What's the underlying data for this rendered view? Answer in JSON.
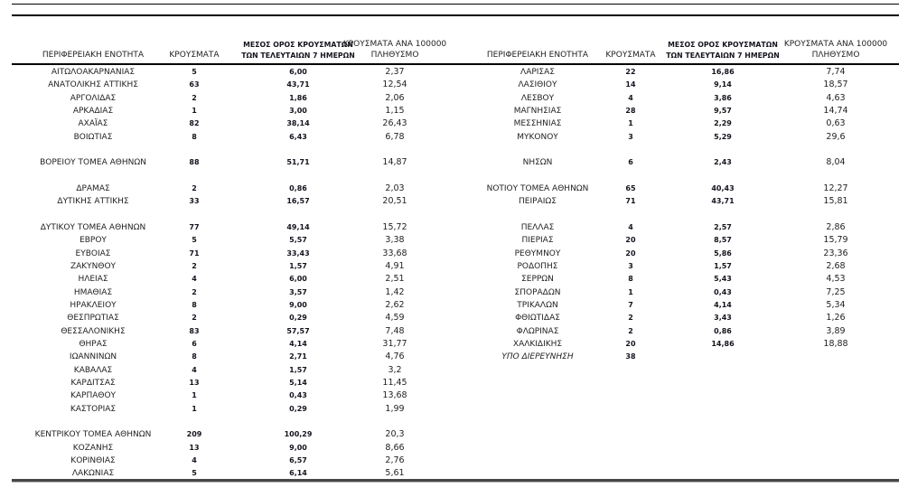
{
  "header": {
    "region": "ΠΕΡΙΦΕΡΕΙΑΚΗ ΕΝΟΤΗΤΑ",
    "cases": "ΚΡΟΥΣΜΑΤΑ",
    "avg7_line1": "ΜΕΣΟΣ ΟΡΟΣ ΚΡΟΥΣΜΑΤΩΝ",
    "avg7_line2": "ΤΩΝ ΤΕΛΕΥΤΑΙΩΝ 7 ΗΜΕΡΩΝ",
    "per100k_line1": "ΚΡΟΥΣΜΑΤΑ ΑΝΑ 100000",
    "per100k_line2": "ΠΛΗΘΥΣΜΟ"
  },
  "tables": [
    {
      "side": "left",
      "rows": [
        {
          "region": "ΑΙΤΩΛΟΑΚΑΡΝΑΝΙΑΣ",
          "cases": "5",
          "avg7": "6,00",
          "per100k": "2,37"
        },
        {
          "region": "ΑΝΑΤΟΛΙΚΗΣ ΑΤΤΙΚΗΣ",
          "cases": "63",
          "avg7": "43,71",
          "per100k": "12,54"
        },
        {
          "region": "ΑΡΓΟΛΙΔΑΣ",
          "cases": "2",
          "avg7": "1,86",
          "per100k": "2,06"
        },
        {
          "region": "ΑΡΚΑΔΙΑΣ",
          "cases": "1",
          "avg7": "3,00",
          "per100k": "1,15"
        },
        {
          "region": "ΑΧΑΪΑΣ",
          "cases": "82",
          "avg7": "38,14",
          "per100k": "26,43"
        },
        {
          "region": "ΒΟΙΩΤΙΑΣ",
          "cases": "8",
          "avg7": "6,43",
          "per100k": "6,78"
        },
        {
          "region": "",
          "cases": "",
          "avg7": "",
          "per100k": ""
        },
        {
          "region": "ΒΟΡΕΙΟΥ ΤΟΜΕΑ ΑΘΗΝΩΝ",
          "cases": "88",
          "avg7": "51,71",
          "per100k": "14,87"
        },
        {
          "region": "",
          "cases": "",
          "avg7": "",
          "per100k": ""
        },
        {
          "region": "ΔΡΑΜΑΣ",
          "cases": "2",
          "avg7": "0,86",
          "per100k": "2,03"
        },
        {
          "region": "ΔΥΤΙΚΗΣ ΑΤΤΙΚΗΣ",
          "cases": "33",
          "avg7": "16,57",
          "per100k": "20,51"
        },
        {
          "region": "",
          "cases": "",
          "avg7": "",
          "per100k": ""
        },
        {
          "region": "ΔΥΤΙΚΟΥ ΤΟΜΕΑ ΑΘΗΝΩΝ",
          "cases": "77",
          "avg7": "49,14",
          "per100k": "15,72"
        },
        {
          "region": "ΕΒΡΟΥ",
          "cases": "5",
          "avg7": "5,57",
          "per100k": "3,38"
        },
        {
          "region": "ΕΥΒΟΙΑΣ",
          "cases": "71",
          "avg7": "33,43",
          "per100k": "33,68"
        },
        {
          "region": "ΖΑΚΥΝΘΟΥ",
          "cases": "2",
          "avg7": "1,57",
          "per100k": "4,91"
        },
        {
          "region": "ΗΛΕΙΑΣ",
          "cases": "4",
          "avg7": "6,00",
          "per100k": "2,51"
        },
        {
          "region": "ΗΜΑΘΙΑΣ",
          "cases": "2",
          "avg7": "3,57",
          "per100k": "1,42"
        },
        {
          "region": "ΗΡΑΚΛΕΙΟΥ",
          "cases": "8",
          "avg7": "9,00",
          "per100k": "2,62"
        },
        {
          "region": "ΘΕΣΠΡΩΤΙΑΣ",
          "cases": "2",
          "avg7": "0,29",
          "per100k": "4,59"
        },
        {
          "region": "ΘΕΣΣΑΛΟΝΙΚΗΣ",
          "cases": "83",
          "avg7": "57,57",
          "per100k": "7,48"
        },
        {
          "region": "ΘΗΡΑΣ",
          "cases": "6",
          "avg7": "4,14",
          "per100k": "31,77"
        },
        {
          "region": "ΙΩΑΝΝΙΝΩΝ",
          "cases": "8",
          "avg7": "2,71",
          "per100k": "4,76"
        },
        {
          "region": "ΚΑΒΑΛΑΣ",
          "cases": "4",
          "avg7": "1,57",
          "per100k": "3,2"
        },
        {
          "region": "ΚΑΡΔΙΤΣΑΣ",
          "cases": "13",
          "avg7": "5,14",
          "per100k": "11,45"
        },
        {
          "region": "ΚΑΡΠΑΘΟΥ",
          "cases": "1",
          "avg7": "0,43",
          "per100k": "13,68"
        },
        {
          "region": "ΚΑΣΤΟΡΙΑΣ",
          "cases": "1",
          "avg7": "0,29",
          "per100k": "1,99"
        },
        {
          "region": "",
          "cases": "",
          "avg7": "",
          "per100k": ""
        },
        {
          "region": "ΚΕΝΤΡΙΚΟΥ ΤΟΜΕΑ ΑΘΗΝΩΝ",
          "cases": "209",
          "avg7": "100,29",
          "per100k": "20,3"
        },
        {
          "region": "ΚΟΖΑΝΗΣ",
          "cases": "13",
          "avg7": "9,00",
          "per100k": "8,66"
        },
        {
          "region": "ΚΟΡΙΝΘΙΑΣ",
          "cases": "4",
          "avg7": "6,57",
          "per100k": "2,76"
        },
        {
          "region": "ΛΑΚΩΝΙΑΣ",
          "cases": "5",
          "avg7": "6,14",
          "per100k": "5,61"
        }
      ]
    },
    {
      "side": "right",
      "rows": [
        {
          "region": "ΛΑΡΙΣΑΣ",
          "cases": "22",
          "avg7": "16,86",
          "per100k": "7,74"
        },
        {
          "region": "ΛΑΣΙΘΙΟΥ",
          "cases": "14",
          "avg7": "9,14",
          "per100k": "18,57"
        },
        {
          "region": "ΛΕΣΒΟΥ",
          "cases": "4",
          "avg7": "3,86",
          "per100k": "4,63"
        },
        {
          "region": "ΜΑΓΝΗΣΙΑΣ",
          "cases": "28",
          "avg7": "9,57",
          "per100k": "14,74"
        },
        {
          "region": "ΜΕΣΣΗΝΙΑΣ",
          "cases": "1",
          "avg7": "2,29",
          "per100k": "0,63"
        },
        {
          "region": "ΜΥΚΟΝΟΥ",
          "cases": "3",
          "avg7": "5,29",
          "per100k": "29,6"
        },
        {
          "region": "",
          "cases": "",
          "avg7": "",
          "per100k": ""
        },
        {
          "region": "ΝΗΣΩΝ",
          "cases": "6",
          "avg7": "2,43",
          "per100k": "8,04"
        },
        {
          "region": "",
          "cases": "",
          "avg7": "",
          "per100k": ""
        },
        {
          "region": "ΝΟΤΙΟΥ ΤΟΜΕΑ ΑΘΗΝΩΝ",
          "cases": "65",
          "avg7": "40,43",
          "per100k": "12,27"
        },
        {
          "region": "ΠΕΙΡΑΙΩΣ",
          "cases": "71",
          "avg7": "43,71",
          "per100k": "15,81"
        },
        {
          "region": "",
          "cases": "",
          "avg7": "",
          "per100k": ""
        },
        {
          "region": "ΠΕΛΛΑΣ",
          "cases": "4",
          "avg7": "2,57",
          "per100k": "2,86"
        },
        {
          "region": "ΠΙΕΡΙΑΣ",
          "cases": "20",
          "avg7": "8,57",
          "per100k": "15,79"
        },
        {
          "region": "ΡΕΘΥΜΝΟΥ",
          "cases": "20",
          "avg7": "5,86",
          "per100k": "23,36"
        },
        {
          "region": "ΡΟΔΟΠΗΣ",
          "cases": "3",
          "avg7": "1,57",
          "per100k": "2,68"
        },
        {
          "region": "ΣΕΡΡΩΝ",
          "cases": "8",
          "avg7": "5,43",
          "per100k": "4,53"
        },
        {
          "region": "ΣΠΟΡΑΔΩΝ",
          "cases": "1",
          "avg7": "0,43",
          "per100k": "7,25"
        },
        {
          "region": "ΤΡΙΚΑΛΩΝ",
          "cases": "7",
          "avg7": "4,14",
          "per100k": "5,34"
        },
        {
          "region": "ΦΘΙΩΤΙΔΑΣ",
          "cases": "2",
          "avg7": "3,43",
          "per100k": "1,26"
        },
        {
          "region": "ΦΛΩΡΙΝΑΣ",
          "cases": "2",
          "avg7": "0,86",
          "per100k": "3,89"
        },
        {
          "region": "ΧΑΛΚΙΔΙΚΗΣ",
          "cases": "20",
          "avg7": "14,86",
          "per100k": "18,88"
        },
        {
          "region": "ΥΠΟ ΔΙΕΡΕΥΝΗΣΗ",
          "cases": "38",
          "avg7": "",
          "per100k": "",
          "italic": true
        }
      ]
    }
  ]
}
